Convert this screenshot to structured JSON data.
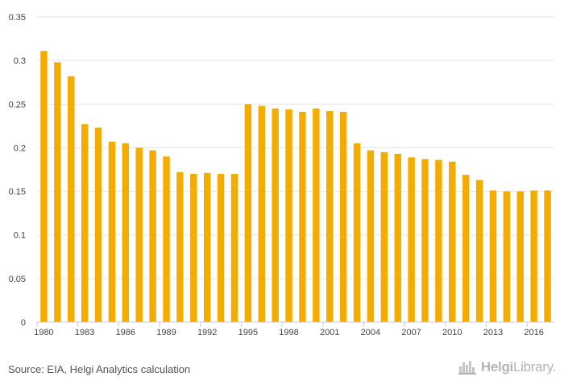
{
  "chart_data": {
    "type": "bar",
    "title": "",
    "xlabel": "",
    "ylabel": "",
    "ylim": [
      0,
      0.35
    ],
    "yticks": [
      0,
      0.05,
      0.1,
      0.15,
      0.2,
      0.25,
      0.3,
      0.35
    ],
    "ytick_labels": [
      "0",
      "0.05",
      "0.1",
      "0.15",
      "0.2",
      "0.25",
      "0.3",
      "0.35"
    ],
    "categories": [
      "1980",
      "1981",
      "1982",
      "1983",
      "1984",
      "1985",
      "1986",
      "1987",
      "1988",
      "1989",
      "1990",
      "1991",
      "1992",
      "1993",
      "1994",
      "1995",
      "1996",
      "1997",
      "1998",
      "1999",
      "2000",
      "2001",
      "2002",
      "2003",
      "2004",
      "2005",
      "2006",
      "2007",
      "2008",
      "2009",
      "2010",
      "2011",
      "2012",
      "2013",
      "2014",
      "2015",
      "2016",
      "2017"
    ],
    "xtick_labels": [
      "1980",
      "1983",
      "1986",
      "1989",
      "1992",
      "1995",
      "1998",
      "2001",
      "2004",
      "2007",
      "2010",
      "2013",
      "2016"
    ],
    "values": [
      0.311,
      0.298,
      0.282,
      0.227,
      0.223,
      0.207,
      0.205,
      0.2,
      0.197,
      0.19,
      0.172,
      0.17,
      0.171,
      0.17,
      0.17,
      0.25,
      0.248,
      0.245,
      0.244,
      0.241,
      0.245,
      0.242,
      0.241,
      0.205,
      0.197,
      0.195,
      0.193,
      0.189,
      0.187,
      0.186,
      0.184,
      0.169,
      0.163,
      0.151,
      0.15,
      0.15,
      0.151,
      0.151
    ],
    "bar_color": "#f5ac00",
    "grid": true
  },
  "footer": {
    "source": "Source: EIA, Helgi Analytics calculation",
    "brand_bold": "Helgi",
    "brand_rest": "Library."
  }
}
